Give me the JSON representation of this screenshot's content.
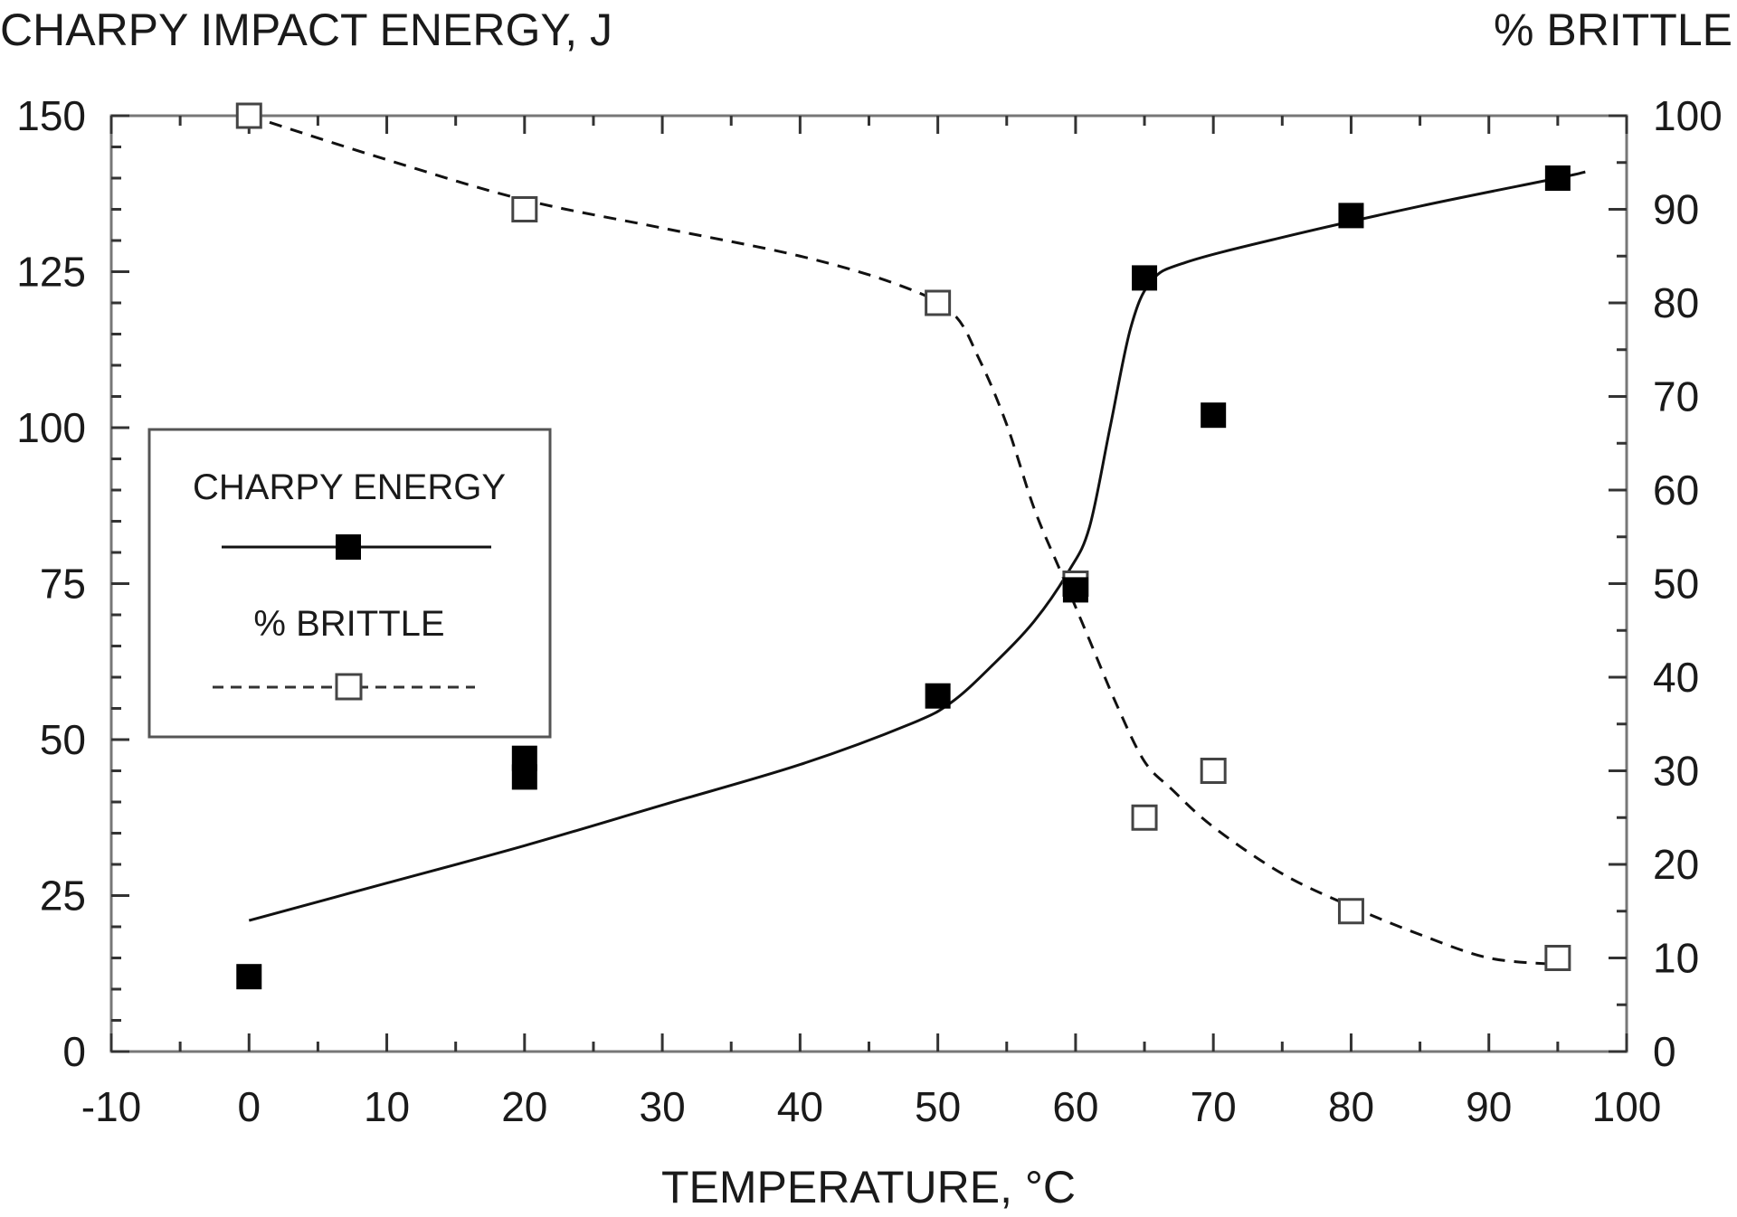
{
  "chart_data": {
    "type": "line",
    "title_left": "CHARPY IMPACT ENERGY, J",
    "title_right": "% BRITTLE",
    "xlabel": "TEMPERATURE, °C",
    "xlim": [
      -10,
      100
    ],
    "xticks": [
      -10,
      0,
      10,
      20,
      30,
      40,
      50,
      60,
      70,
      80,
      90,
      100
    ],
    "ylim_left": [
      0,
      150
    ],
    "yticks_left": [
      0,
      25,
      50,
      75,
      100,
      125,
      150
    ],
    "ylim_right": [
      0,
      100
    ],
    "yticks_right": [
      0,
      10,
      20,
      30,
      40,
      50,
      60,
      70,
      80,
      90,
      100
    ],
    "legend_position": "middle-left",
    "series": [
      {
        "name": "CHARPY ENERGY",
        "axis": "left",
        "marker": "filled-square",
        "line_style": "solid",
        "points": [
          {
            "x": 0,
            "y": 12
          },
          {
            "x": 20,
            "y": 47
          },
          {
            "x": 20,
            "y": 44
          },
          {
            "x": 50,
            "y": 57
          },
          {
            "x": 60,
            "y": 74
          },
          {
            "x": 65,
            "y": 124
          },
          {
            "x": 70,
            "y": 102
          },
          {
            "x": 80,
            "y": 134
          },
          {
            "x": 95,
            "y": 140
          }
        ],
        "fit_curve": [
          [
            0,
            21
          ],
          [
            10,
            27
          ],
          [
            20,
            33
          ],
          [
            30,
            39.5
          ],
          [
            40,
            46
          ],
          [
            48,
            52.5
          ],
          [
            51,
            56
          ],
          [
            54,
            62
          ],
          [
            57,
            69
          ],
          [
            59.5,
            77
          ],
          [
            61,
            84
          ],
          [
            62.5,
            100
          ],
          [
            64,
            116
          ],
          [
            65.5,
            123.5
          ],
          [
            68,
            126.5
          ],
          [
            75,
            130.5
          ],
          [
            85,
            135.5
          ],
          [
            95,
            140
          ],
          [
            97,
            141
          ]
        ]
      },
      {
        "name": "% BRITTLE",
        "axis": "right",
        "marker": "open-square",
        "line_style": "dashed",
        "points": [
          {
            "x": 0,
            "y": 100
          },
          {
            "x": 20,
            "y": 90
          },
          {
            "x": 50,
            "y": 80
          },
          {
            "x": 60,
            "y": 50
          },
          {
            "x": 65,
            "y": 25
          },
          {
            "x": 70,
            "y": 30
          },
          {
            "x": 80,
            "y": 15
          },
          {
            "x": 95,
            "y": 10
          }
        ],
        "fit_curve": [
          [
            0,
            100
          ],
          [
            10,
            95.3
          ],
          [
            20,
            91
          ],
          [
            30,
            88
          ],
          [
            40,
            85
          ],
          [
            47,
            82
          ],
          [
            51,
            79
          ],
          [
            53,
            74
          ],
          [
            55,
            67
          ],
          [
            57,
            58
          ],
          [
            59,
            51
          ],
          [
            61,
            44
          ],
          [
            63,
            37
          ],
          [
            65,
            31
          ],
          [
            67,
            28
          ],
          [
            70,
            24
          ],
          [
            75,
            19
          ],
          [
            80,
            15.5
          ],
          [
            85,
            12.5
          ],
          [
            90,
            10
          ],
          [
            95,
            9.3
          ]
        ]
      }
    ]
  }
}
